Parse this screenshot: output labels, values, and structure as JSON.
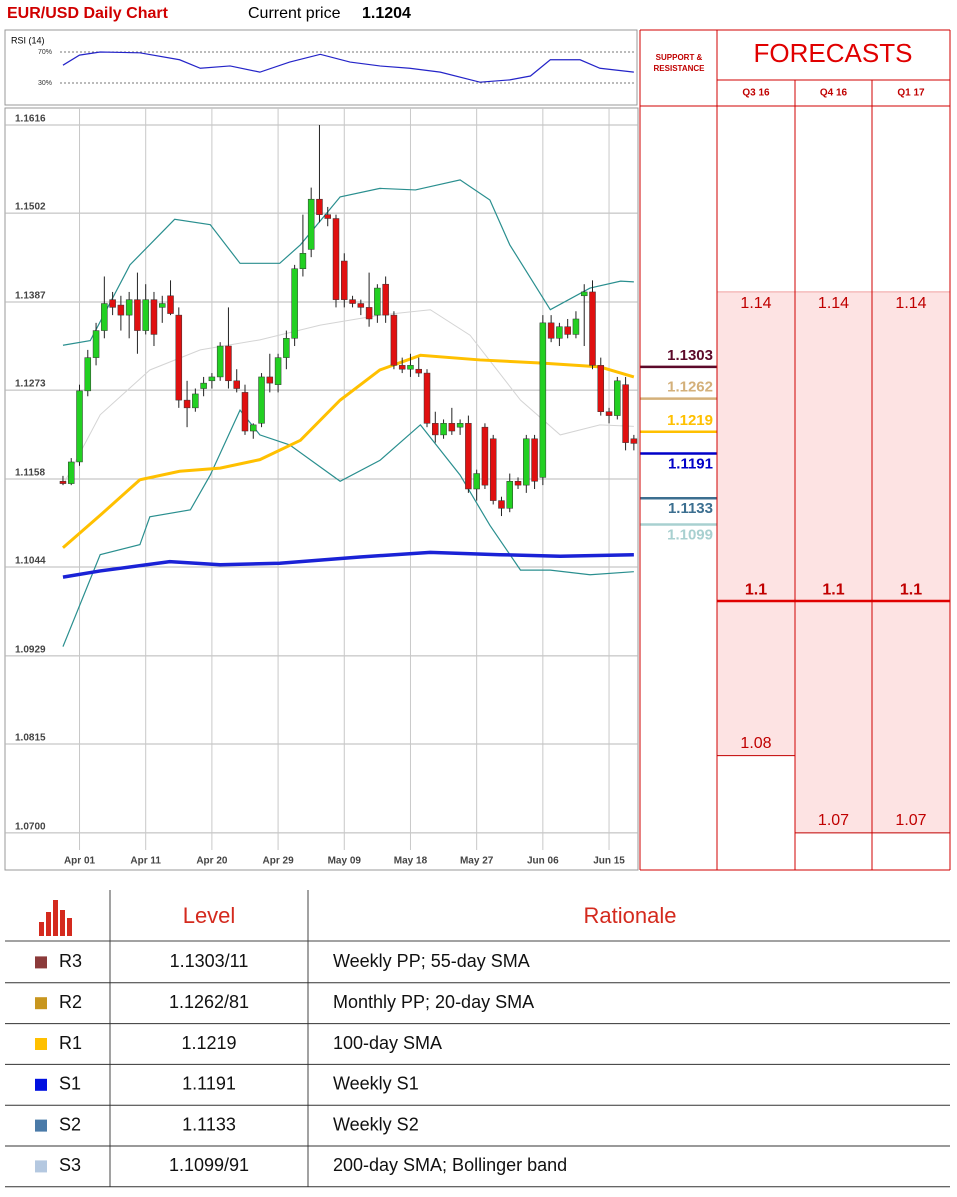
{
  "header": {
    "title": "EUR/USD Daily Chart",
    "price_label": "Current price",
    "price": 1.1204
  },
  "chart_data": [
    {
      "type": "candlestick",
      "x": [
        0,
        1,
        2,
        3,
        4,
        5,
        6,
        7,
        8,
        9,
        10,
        11,
        12,
        13,
        14,
        15,
        16,
        17,
        18,
        19,
        20,
        21,
        22,
        23,
        24,
        25,
        26,
        27,
        28,
        29,
        30,
        31,
        32,
        33,
        34,
        35,
        36,
        37,
        38,
        39,
        40,
        41,
        42,
        43,
        44,
        45,
        46,
        47,
        48,
        49,
        50,
        51,
        52,
        53,
        54,
        55,
        56,
        57,
        58,
        59,
        60,
        61,
        62,
        63,
        64,
        65,
        66,
        67,
        68,
        69
      ],
      "open": [
        1.1155,
        1.1152,
        1.118,
        1.1272,
        1.1315,
        1.135,
        1.139,
        1.1383,
        1.137,
        1.139,
        1.135,
        1.139,
        1.138,
        1.1395,
        1.137,
        1.126,
        1.125,
        1.1275,
        1.1285,
        1.129,
        1.133,
        1.1285,
        1.127,
        1.122,
        1.123,
        1.129,
        1.128,
        1.1315,
        1.134,
        1.143,
        1.1455,
        1.152,
        1.15,
        1.1495,
        1.144,
        1.139,
        1.1385,
        1.138,
        1.137,
        1.141,
        1.137,
        1.1305,
        1.13,
        1.13,
        1.1295,
        1.123,
        1.1215,
        1.123,
        1.1225,
        1.123,
        1.1145,
        1.1225,
        1.121,
        1.113,
        1.112,
        1.1155,
        1.115,
        1.121,
        1.116,
        1.136,
        1.134,
        1.1355,
        1.1345,
        1.1395,
        1.14,
        1.1305,
        1.1245,
        1.124,
        1.128,
        1.121
      ],
      "high": [
        1.1162,
        1.1185,
        1.128,
        1.1325,
        1.136,
        1.142,
        1.14,
        1.1395,
        1.14,
        1.1425,
        1.141,
        1.14,
        1.1395,
        1.1415,
        1.138,
        1.1285,
        1.1275,
        1.129,
        1.1295,
        1.1335,
        1.138,
        1.13,
        1.128,
        1.123,
        1.1295,
        1.132,
        1.132,
        1.135,
        1.1435,
        1.15,
        1.1535,
        1.1616,
        1.151,
        1.15,
        1.145,
        1.1395,
        1.139,
        1.1425,
        1.141,
        1.142,
        1.1375,
        1.1315,
        1.132,
        1.1315,
        1.13,
        1.1245,
        1.1235,
        1.125,
        1.1235,
        1.124,
        1.117,
        1.123,
        1.1215,
        1.1135,
        1.1165,
        1.116,
        1.1215,
        1.1215,
        1.137,
        1.137,
        1.136,
        1.1365,
        1.1375,
        1.141,
        1.1415,
        1.1315,
        1.125,
        1.129,
        1.129,
        1.1215
      ],
      "low": [
        1.115,
        1.115,
        1.1175,
        1.1265,
        1.1305,
        1.134,
        1.137,
        1.135,
        1.134,
        1.132,
        1.1345,
        1.133,
        1.136,
        1.137,
        1.125,
        1.1225,
        1.1245,
        1.1265,
        1.1275,
        1.1285,
        1.1275,
        1.127,
        1.1215,
        1.121,
        1.1225,
        1.127,
        1.127,
        1.13,
        1.133,
        1.142,
        1.1445,
        1.149,
        1.1485,
        1.138,
        1.138,
        1.138,
        1.137,
        1.1355,
        1.136,
        1.136,
        1.13,
        1.1295,
        1.129,
        1.129,
        1.1225,
        1.1205,
        1.121,
        1.1215,
        1.1215,
        1.114,
        1.113,
        1.1145,
        1.1125,
        1.111,
        1.1115,
        1.1145,
        1.114,
        1.1145,
        1.115,
        1.1335,
        1.133,
        1.134,
        1.134,
        1.133,
        1.13,
        1.124,
        1.123,
        1.1235,
        1.1195,
        1.1195
      ],
      "close": [
        1.1152,
        1.118,
        1.1272,
        1.1315,
        1.135,
        1.1385,
        1.138,
        1.137,
        1.139,
        1.135,
        1.139,
        1.1345,
        1.1385,
        1.1372,
        1.126,
        1.125,
        1.1268,
        1.1282,
        1.129,
        1.133,
        1.1285,
        1.1275,
        1.122,
        1.1228,
        1.129,
        1.1282,
        1.1315,
        1.134,
        1.143,
        1.145,
        1.152,
        1.15,
        1.1495,
        1.139,
        1.139,
        1.1385,
        1.138,
        1.1365,
        1.1405,
        1.137,
        1.1305,
        1.13,
        1.1305,
        1.1295,
        1.123,
        1.1215,
        1.123,
        1.122,
        1.123,
        1.1145,
        1.1165,
        1.115,
        1.113,
        1.112,
        1.1155,
        1.115,
        1.121,
        1.1155,
        1.136,
        1.134,
        1.1355,
        1.1345,
        1.1365,
        1.14,
        1.1305,
        1.1245,
        1.124,
        1.1285,
        1.1205,
        1.1204
      ],
      "up_color": "#22d022",
      "down_color": "#e01010",
      "xlim": [
        -0.6,
        69.5
      ],
      "ylim": [
        1.0652,
        1.1638
      ],
      "grid": true,
      "xticks": [
        {
          "value": 2,
          "label": "Apr 01"
        },
        {
          "value": 10,
          "label": "Apr 11"
        },
        {
          "value": 18,
          "label": "Apr 20"
        },
        {
          "value": 26,
          "label": "Apr 29"
        },
        {
          "value": 34,
          "label": "May 09"
        },
        {
          "value": 42,
          "label": "May 18"
        },
        {
          "value": 50,
          "label": "May 27"
        },
        {
          "value": 58,
          "label": "Jun 06"
        },
        {
          "value": 66,
          "label": "Jun 15"
        }
      ],
      "yticks": [
        1.1616,
        1.1502,
        1.1387,
        1.1273,
        1.1158,
        1.1044,
        1.0929,
        1.0815,
        {
          "value": 1.07,
          "label": "1.0700"
        }
      ],
      "overlays": [
        {
          "color": "#d4d4d4",
          "width": 1,
          "x": [
            0,
            4.5,
            10.5,
            16.6,
            23.8,
            31.1,
            38.3,
            44.4,
            49.2,
            55.3,
            60.1,
            64.9,
            69
          ],
          "values": [
            1.115,
            1.1241,
            1.1299,
            1.1325,
            1.1338,
            1.1357,
            1.137,
            1.1377,
            1.1344,
            1.126,
            1.1215,
            1.1228,
            1.1226
          ]
        },
        {
          "color": "#2a8f8f",
          "width": 1.2,
          "x": [
            0,
            3.3,
            8.1,
            13.5,
            17.8,
            21.4,
            26.2,
            28.7,
            33.5,
            38.3,
            42.6,
            48,
            51.6,
            54,
            58.9,
            63.7,
            67.4,
            69
          ],
          "values": [
            1.1331,
            1.1337,
            1.1435,
            1.1494,
            1.1487,
            1.1437,
            1.1437,
            1.1461,
            1.1523,
            1.1534,
            1.1532,
            1.1545,
            1.1519,
            1.1461,
            1.1377,
            1.1405,
            1.1414,
            1.1413
          ]
        },
        {
          "color": "#2a8f8f",
          "width": 1.2,
          "x": [
            0,
            4.5,
            9.3,
            10.5,
            15.4,
            17.8,
            21.4,
            23.8,
            27.4,
            33.5,
            38.3,
            43.2,
            48,
            51.6,
            55.3,
            58.9,
            63.7,
            69
          ],
          "values": [
            1.0941,
            1.106,
            1.1073,
            1.1109,
            1.1118,
            1.1163,
            1.1247,
            1.1215,
            1.1202,
            1.1155,
            1.1182,
            1.1228,
            1.1163,
            1.1098,
            1.104,
            1.104,
            1.1034,
            1.1038
          ]
        },
        {
          "color": "#ffc000",
          "width": 3,
          "x": [
            0,
            4.5,
            9.3,
            14.1,
            19,
            23.8,
            28.7,
            33.5,
            38.3,
            43.2,
            50.4,
            57.7,
            64.9,
            69
          ],
          "values": [
            1.1069,
            1.1111,
            1.1157,
            1.1168,
            1.1172,
            1.1183,
            1.1208,
            1.126,
            1.1299,
            1.1318,
            1.1312,
            1.1308,
            1.1303,
            1.129
          ]
        },
        {
          "color": "#1a22d6",
          "width": 3.5,
          "x": [
            0,
            4.5,
            12.9,
            19,
            26.2,
            35.9,
            44.4,
            52.8,
            60.1,
            69
          ],
          "values": [
            1.1031,
            1.1039,
            1.1051,
            1.1047,
            1.1049,
            1.1057,
            1.1063,
            1.106,
            1.1058,
            1.106
          ]
        }
      ],
      "levels_title": "SUPPORT & RESISTANCE",
      "levels": [
        {
          "value": 1.1303,
          "color": "#5c0a2a"
        },
        {
          "value": 1.1262,
          "color": "#d4b07a"
        },
        {
          "value": 1.1219,
          "color": "#ffc000"
        },
        {
          "value": 1.1191,
          "color": "#0000c8"
        },
        {
          "value": 1.1133,
          "color": "#3c6f90"
        },
        {
          "value": 1.1099,
          "color": "#a8d0d0"
        }
      ],
      "forecasts": {
        "title": "FORECASTS",
        "columns": [
          "Q3 16",
          "Q4 16",
          "Q1 17"
        ],
        "high": [
          1.14,
          1.14,
          1.14
        ],
        "mid": [
          1.1,
          1.1,
          1.1
        ],
        "low": [
          1.08,
          1.07,
          1.07
        ]
      }
    },
    {
      "type": "line",
      "title": "RSI (14)",
      "color": "#2424c8",
      "x": [
        0,
        2,
        4.5,
        9.3,
        14.1,
        16.6,
        20.2,
        23.8,
        27.4,
        31.1,
        34.7,
        38.3,
        41.9,
        45.6,
        50.4,
        54,
        56.5,
        58.9,
        62.5,
        64.9,
        69
      ],
      "values": [
        53,
        66,
        70,
        69,
        60,
        49,
        52,
        44,
        57,
        67,
        57,
        52,
        49,
        44,
        31,
        34,
        39,
        60,
        60,
        49,
        44
      ],
      "xlim": [
        -0.6,
        69.5
      ],
      "ylim": [
        8,
        92
      ],
      "yticks": [
        {
          "value": 70,
          "label": "70%"
        },
        {
          "value": 30,
          "label": "30%"
        }
      ]
    }
  ],
  "table": {
    "headers": [
      "Level",
      "Rationale"
    ],
    "rows": [
      {
        "name": "R3",
        "color": "#8b3a3a",
        "level": "1.1303/11",
        "rationale": "Weekly PP; 55-day SMA"
      },
      {
        "name": "R2",
        "color": "#c8961e",
        "level": "1.1262/81",
        "rationale": "Monthly PP; 20-day SMA"
      },
      {
        "name": "R1",
        "color": "#ffc000",
        "level": "1.1219",
        "rationale": "100-day SMA"
      },
      {
        "name": "S1",
        "color": "#0010e0",
        "level": "1.1191",
        "rationale": "Weekly S1"
      },
      {
        "name": "S2",
        "color": "#4a7aa8",
        "level": "1.1133",
        "rationale": "Weekly S2"
      },
      {
        "name": "S3",
        "color": "#b4c8e0",
        "level": "1.1099/91",
        "rationale": "200-day SMA; Bollinger band"
      }
    ]
  }
}
